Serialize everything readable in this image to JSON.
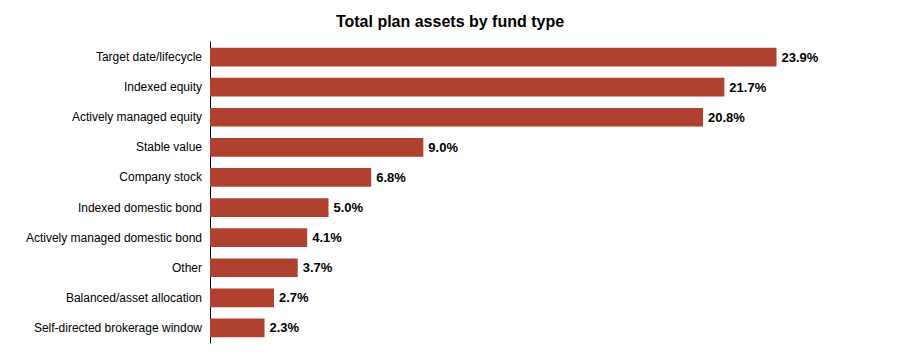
{
  "chart_data": {
    "type": "bar",
    "orientation": "horizontal",
    "title": "Total plan assets by fund type",
    "categories": [
      "Target date/lifecycle",
      "Indexed equity",
      "Actively managed equity",
      "Stable value",
      "Company stock",
      "Indexed domestic bond",
      "Actively managed domestic bond",
      "Other",
      "Balanced/asset allocation",
      "Self-directed brokerage window"
    ],
    "values": [
      23.9,
      21.7,
      20.8,
      9.0,
      6.8,
      5.0,
      4.1,
      3.7,
      2.7,
      2.3
    ],
    "value_labels": [
      "23.9%",
      "21.7%",
      "20.8%",
      "9.0%",
      "6.8%",
      "5.0%",
      "4.1%",
      "3.7%",
      "2.7%",
      "2.3%"
    ],
    "data_labels": true,
    "color": "#b04030",
    "xlim": [
      0,
      27
    ],
    "tick_labels": "y",
    "grid": false
  }
}
